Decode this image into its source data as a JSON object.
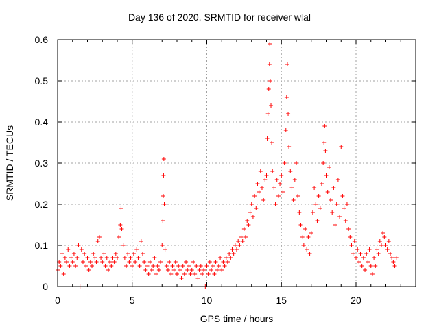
{
  "chart_data": {
    "type": "scatter",
    "title": "Day 136 of 2020, SRMTID for receiver wlal",
    "xlabel": "GPS time / hours",
    "ylabel": "SRMTID / TECUs",
    "xlim": [
      0,
      24
    ],
    "ylim": [
      0,
      0.6
    ],
    "xticks": [
      0,
      5,
      10,
      15,
      20
    ],
    "yticks": [
      0,
      0.1,
      0.2,
      0.3,
      0.4,
      0.5,
      0.6
    ],
    "ytick_labels": [
      "0",
      "0.1",
      "0.2",
      "0.3",
      "0.4",
      "0.5",
      "0.6"
    ],
    "grid": true,
    "marker": "+",
    "color": "#ff0000",
    "series": [
      {
        "name": "SRMTID",
        "points": [
          [
            0.0,
            0.04
          ],
          [
            0.1,
            0.06
          ],
          [
            0.2,
            0.05
          ],
          [
            0.3,
            0.08
          ],
          [
            0.4,
            0.03
          ],
          [
            0.5,
            0.07
          ],
          [
            0.6,
            0.06
          ],
          [
            0.7,
            0.09
          ],
          [
            0.8,
            0.05
          ],
          [
            0.9,
            0.07
          ],
          [
            1.0,
            0.06
          ],
          [
            1.1,
            0.08
          ],
          [
            1.2,
            0.05
          ],
          [
            1.3,
            0.07
          ],
          [
            1.4,
            0.1
          ],
          [
            1.5,
            0.0
          ],
          [
            1.6,
            0.09
          ],
          [
            1.7,
            0.06
          ],
          [
            1.8,
            0.08
          ],
          [
            1.9,
            0.05
          ],
          [
            2.0,
            0.07
          ],
          [
            2.1,
            0.04
          ],
          [
            2.2,
            0.06
          ],
          [
            2.3,
            0.05
          ],
          [
            2.4,
            0.08
          ],
          [
            2.5,
            0.07
          ],
          [
            2.6,
            0.06
          ],
          [
            2.7,
            0.11
          ],
          [
            2.8,
            0.12
          ],
          [
            2.9,
            0.07
          ],
          [
            3.0,
            0.06
          ],
          [
            3.1,
            0.08
          ],
          [
            3.2,
            0.05
          ],
          [
            3.3,
            0.07
          ],
          [
            3.4,
            0.04
          ],
          [
            3.5,
            0.06
          ],
          [
            3.6,
            0.05
          ],
          [
            3.7,
            0.07
          ],
          [
            3.8,
            0.06
          ],
          [
            3.9,
            0.08
          ],
          [
            4.0,
            0.07
          ],
          [
            4.1,
            0.12
          ],
          [
            4.2,
            0.15
          ],
          [
            4.25,
            0.19
          ],
          [
            4.3,
            0.14
          ],
          [
            4.4,
            0.1
          ],
          [
            4.5,
            0.07
          ],
          [
            4.6,
            0.05
          ],
          [
            4.7,
            0.08
          ],
          [
            4.8,
            0.06
          ],
          [
            4.9,
            0.07
          ],
          [
            5.0,
            0.05
          ],
          [
            5.1,
            0.08
          ],
          [
            5.2,
            0.06
          ],
          [
            5.3,
            0.09
          ],
          [
            5.4,
            0.07
          ],
          [
            5.5,
            0.05
          ],
          [
            5.6,
            0.11
          ],
          [
            5.7,
            0.08
          ],
          [
            5.8,
            0.06
          ],
          [
            5.9,
            0.04
          ],
          [
            6.0,
            0.05
          ],
          [
            6.1,
            0.03
          ],
          [
            6.2,
            0.06
          ],
          [
            6.3,
            0.04
          ],
          [
            6.4,
            0.05
          ],
          [
            6.5,
            0.07
          ],
          [
            6.6,
            0.03
          ],
          [
            6.7,
            0.05
          ],
          [
            6.8,
            0.04
          ],
          [
            6.9,
            0.06
          ],
          [
            7.0,
            0.1
          ],
          [
            7.05,
            0.16
          ],
          [
            7.08,
            0.22
          ],
          [
            7.1,
            0.27
          ],
          [
            7.12,
            0.31
          ],
          [
            7.15,
            0.2
          ],
          [
            7.2,
            0.09
          ],
          [
            7.3,
            0.05
          ],
          [
            7.4,
            0.04
          ],
          [
            7.5,
            0.06
          ],
          [
            7.6,
            0.03
          ],
          [
            7.7,
            0.05
          ],
          [
            7.8,
            0.04
          ],
          [
            7.9,
            0.06
          ],
          [
            8.0,
            0.03
          ],
          [
            8.1,
            0.05
          ],
          [
            8.2,
            0.04
          ],
          [
            8.3,
            0.02
          ],
          [
            8.4,
            0.05
          ],
          [
            8.5,
            0.03
          ],
          [
            8.6,
            0.06
          ],
          [
            8.7,
            0.04
          ],
          [
            8.8,
            0.05
          ],
          [
            8.9,
            0.03
          ],
          [
            9.0,
            0.04
          ],
          [
            9.1,
            0.06
          ],
          [
            9.2,
            0.03
          ],
          [
            9.3,
            0.05
          ],
          [
            9.4,
            0.02
          ],
          [
            9.5,
            0.04
          ],
          [
            9.6,
            0.05
          ],
          [
            9.7,
            0.03
          ],
          [
            9.8,
            0.04
          ],
          [
            9.9,
            0.0
          ],
          [
            10.0,
            0.05
          ],
          [
            10.1,
            0.03
          ],
          [
            10.2,
            0.06
          ],
          [
            10.3,
            0.04
          ],
          [
            10.4,
            0.05
          ],
          [
            10.5,
            0.03
          ],
          [
            10.6,
            0.06
          ],
          [
            10.7,
            0.04
          ],
          [
            10.8,
            0.05
          ],
          [
            10.9,
            0.07
          ],
          [
            11.0,
            0.04
          ],
          [
            11.1,
            0.06
          ],
          [
            11.2,
            0.05
          ],
          [
            11.3,
            0.07
          ],
          [
            11.4,
            0.06
          ],
          [
            11.5,
            0.08
          ],
          [
            11.6,
            0.07
          ],
          [
            11.7,
            0.09
          ],
          [
            11.8,
            0.08
          ],
          [
            11.9,
            0.1
          ],
          [
            12.0,
            0.09
          ],
          [
            12.1,
            0.11
          ],
          [
            12.2,
            0.1
          ],
          [
            12.3,
            0.12
          ],
          [
            12.4,
            0.11
          ],
          [
            12.5,
            0.14
          ],
          [
            12.6,
            0.12
          ],
          [
            12.7,
            0.16
          ],
          [
            12.8,
            0.15
          ],
          [
            12.9,
            0.18
          ],
          [
            13.0,
            0.2
          ],
          [
            13.1,
            0.17
          ],
          [
            13.2,
            0.22
          ],
          [
            13.3,
            0.19
          ],
          [
            13.4,
            0.25
          ],
          [
            13.5,
            0.23
          ],
          [
            13.6,
            0.28
          ],
          [
            13.7,
            0.24
          ],
          [
            13.8,
            0.21
          ],
          [
            13.9,
            0.26
          ],
          [
            14.0,
            0.27
          ],
          [
            14.05,
            0.36
          ],
          [
            14.1,
            0.42
          ],
          [
            14.15,
            0.48
          ],
          [
            14.2,
            0.54
          ],
          [
            14.22,
            0.59
          ],
          [
            14.25,
            0.5
          ],
          [
            14.3,
            0.44
          ],
          [
            14.35,
            0.35
          ],
          [
            14.4,
            0.28
          ],
          [
            14.5,
            0.24
          ],
          [
            14.6,
            0.2
          ],
          [
            14.7,
            0.26
          ],
          [
            14.8,
            0.22
          ],
          [
            14.9,
            0.25
          ],
          [
            15.0,
            0.27
          ],
          [
            15.1,
            0.23
          ],
          [
            15.2,
            0.3
          ],
          [
            15.3,
            0.38
          ],
          [
            15.35,
            0.46
          ],
          [
            15.4,
            0.54
          ],
          [
            15.45,
            0.42
          ],
          [
            15.5,
            0.34
          ],
          [
            15.6,
            0.28
          ],
          [
            15.7,
            0.24
          ],
          [
            15.8,
            0.21
          ],
          [
            15.9,
            0.26
          ],
          [
            16.0,
            0.3
          ],
          [
            16.1,
            0.22
          ],
          [
            16.2,
            0.18
          ],
          [
            16.3,
            0.15
          ],
          [
            16.4,
            0.12
          ],
          [
            16.5,
            0.1
          ],
          [
            16.6,
            0.14
          ],
          [
            16.7,
            0.09
          ],
          [
            16.8,
            0.12
          ],
          [
            16.9,
            0.08
          ],
          [
            17.0,
            0.13
          ],
          [
            17.1,
            0.18
          ],
          [
            17.2,
            0.24
          ],
          [
            17.3,
            0.2
          ],
          [
            17.4,
            0.16
          ],
          [
            17.5,
            0.22
          ],
          [
            17.6,
            0.19
          ],
          [
            17.7,
            0.25
          ],
          [
            17.8,
            0.3
          ],
          [
            17.85,
            0.35
          ],
          [
            17.9,
            0.39
          ],
          [
            17.95,
            0.33
          ],
          [
            18.0,
            0.27
          ],
          [
            18.1,
            0.23
          ],
          [
            18.2,
            0.29
          ],
          [
            18.3,
            0.21
          ],
          [
            18.4,
            0.18
          ],
          [
            18.5,
            0.24
          ],
          [
            18.6,
            0.15
          ],
          [
            18.7,
            0.2
          ],
          [
            18.8,
            0.26
          ],
          [
            18.9,
            0.17
          ],
          [
            19.0,
            0.34
          ],
          [
            19.1,
            0.22
          ],
          [
            19.2,
            0.19
          ],
          [
            19.3,
            0.16
          ],
          [
            19.4,
            0.2
          ],
          [
            19.5,
            0.14
          ],
          [
            19.6,
            0.12
          ],
          [
            19.7,
            0.1
          ],
          [
            19.8,
            0.08
          ],
          [
            19.9,
            0.11
          ],
          [
            20.0,
            0.07
          ],
          [
            20.1,
            0.09
          ],
          [
            20.2,
            0.06
          ],
          [
            20.3,
            0.08
          ],
          [
            20.4,
            0.05
          ],
          [
            20.5,
            0.07
          ],
          [
            20.6,
            0.04
          ],
          [
            20.7,
            0.08
          ],
          [
            20.8,
            0.06
          ],
          [
            20.9,
            0.09
          ],
          [
            21.0,
            0.05
          ],
          [
            21.1,
            0.03
          ],
          [
            21.2,
            0.07
          ],
          [
            21.3,
            0.05
          ],
          [
            21.4,
            0.09
          ],
          [
            21.5,
            0.08
          ],
          [
            21.6,
            0.11
          ],
          [
            21.7,
            0.1
          ],
          [
            21.8,
            0.13
          ],
          [
            21.9,
            0.12
          ],
          [
            22.0,
            0.1
          ],
          [
            22.1,
            0.09
          ],
          [
            22.2,
            0.11
          ],
          [
            22.3,
            0.08
          ],
          [
            22.4,
            0.07
          ],
          [
            22.5,
            0.06
          ],
          [
            22.6,
            0.05
          ],
          [
            22.7,
            0.07
          ]
        ]
      }
    ]
  }
}
